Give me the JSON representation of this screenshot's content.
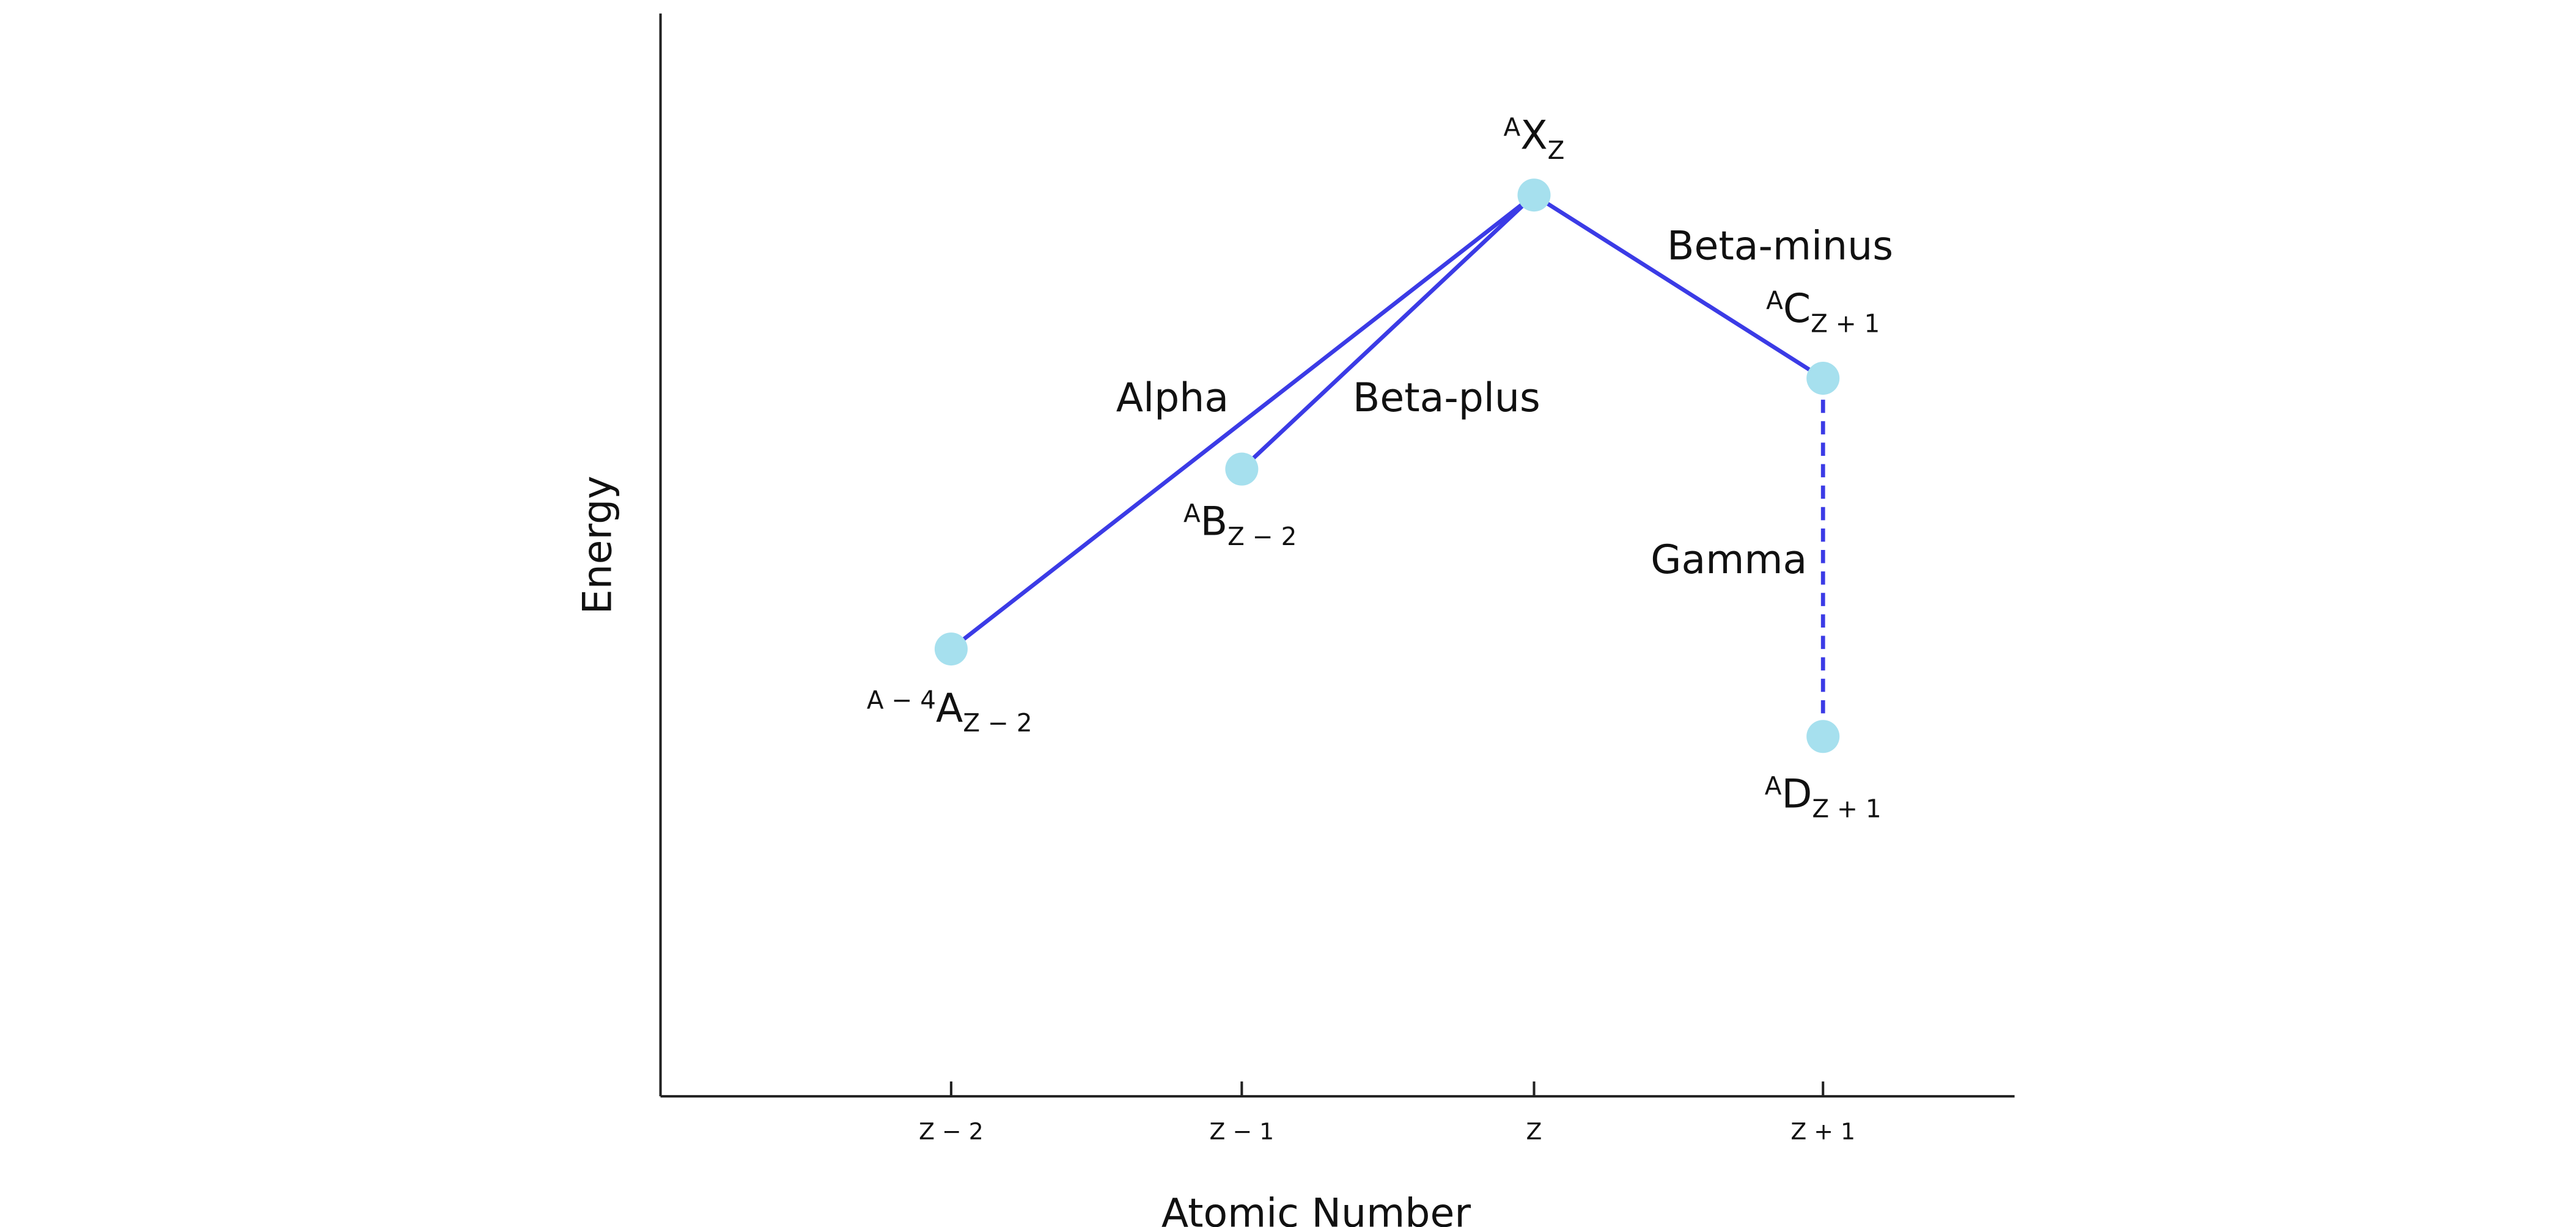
{
  "axes": {
    "x_label": "Atomic Number",
    "y_label": "Energy",
    "x_ticks": [
      "Z − 2",
      "Z − 1",
      "Z",
      "Z + 1"
    ]
  },
  "nodes": [
    {
      "sup": "A",
      "symbol": "X",
      "sub": "Z"
    },
    {
      "sup": "A − 4",
      "symbol": "A",
      "sub": "Z − 2"
    },
    {
      "sup": "A",
      "symbol": "B",
      "sub": "Z − 2"
    },
    {
      "sup": "A",
      "symbol": "C",
      "sub": "Z + 1"
    },
    {
      "sup": "A",
      "symbol": "D",
      "sub": "Z + 1"
    }
  ],
  "edges": [
    {
      "label": "Alpha"
    },
    {
      "label": "Beta-plus"
    },
    {
      "label": "Beta-minus"
    },
    {
      "label": "Gamma"
    }
  ]
}
